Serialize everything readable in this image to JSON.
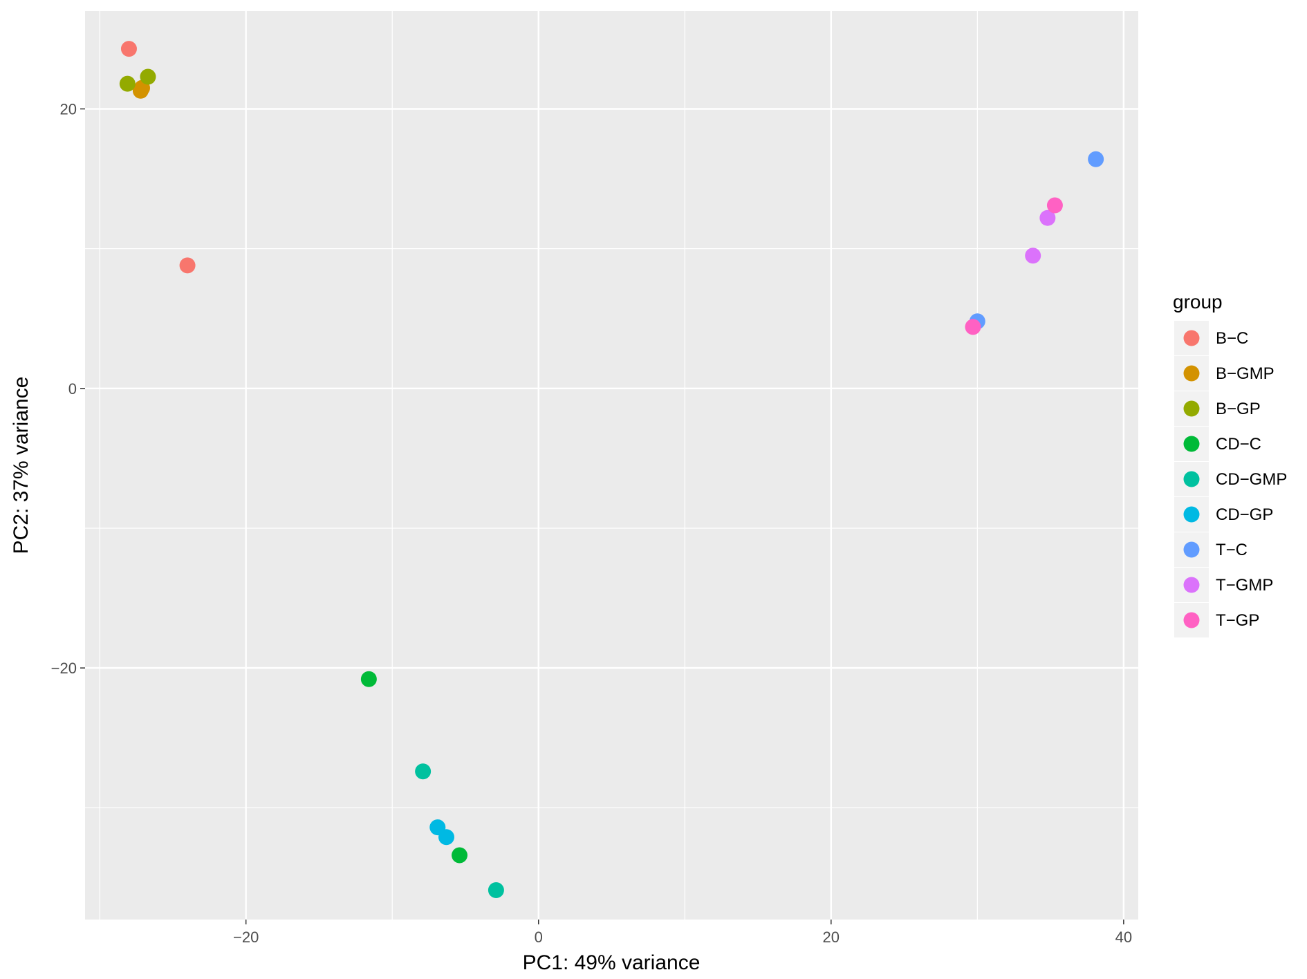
{
  "chart_data": {
    "type": "scatter",
    "title": "",
    "xlabel": "PC1: 49% variance",
    "ylabel": "PC2: 37% variance",
    "xlim": [
      -31,
      41
    ],
    "ylim": [
      -38,
      27
    ],
    "x_ticks": [
      -20,
      0,
      20,
      40
    ],
    "y_ticks": [
      -20,
      0,
      20
    ],
    "x_tick_labels": [
      "−20",
      "0",
      "20",
      "40"
    ],
    "y_tick_labels": [
      "−20",
      "0",
      "20"
    ],
    "grid": true,
    "background": "#ebebeb",
    "legend": {
      "title": "group",
      "position": "right"
    },
    "series": [
      {
        "name": "B−C",
        "color": "#F8766D",
        "points": [
          [
            -28.0,
            24.3
          ],
          [
            -24.0,
            8.8
          ]
        ]
      },
      {
        "name": "B−GMP",
        "color": "#D39200",
        "points": [
          [
            -27.1,
            21.5
          ],
          [
            -27.2,
            21.3
          ]
        ]
      },
      {
        "name": "B−GP",
        "color": "#93AA00",
        "points": [
          [
            -28.1,
            21.8
          ],
          [
            -26.7,
            22.3
          ]
        ]
      },
      {
        "name": "CD−C",
        "color": "#00BA38",
        "points": [
          [
            -11.6,
            -20.8
          ],
          [
            -5.4,
            -33.4
          ]
        ]
      },
      {
        "name": "CD−GMP",
        "color": "#00C19F",
        "points": [
          [
            -7.9,
            -27.4
          ],
          [
            -2.9,
            -35.9
          ]
        ]
      },
      {
        "name": "CD−GP",
        "color": "#00B9E3",
        "points": [
          [
            -6.9,
            -31.4
          ],
          [
            -6.3,
            -32.1
          ]
        ]
      },
      {
        "name": "T−C",
        "color": "#619CFF",
        "points": [
          [
            38.1,
            16.4
          ],
          [
            30.0,
            4.8
          ]
        ]
      },
      {
        "name": "T−GMP",
        "color": "#DB72FB",
        "points": [
          [
            33.8,
            9.5
          ],
          [
            34.8,
            12.2
          ]
        ]
      },
      {
        "name": "T−GP",
        "color": "#FF61C3",
        "points": [
          [
            35.3,
            13.1
          ],
          [
            29.7,
            4.4
          ]
        ]
      }
    ]
  }
}
